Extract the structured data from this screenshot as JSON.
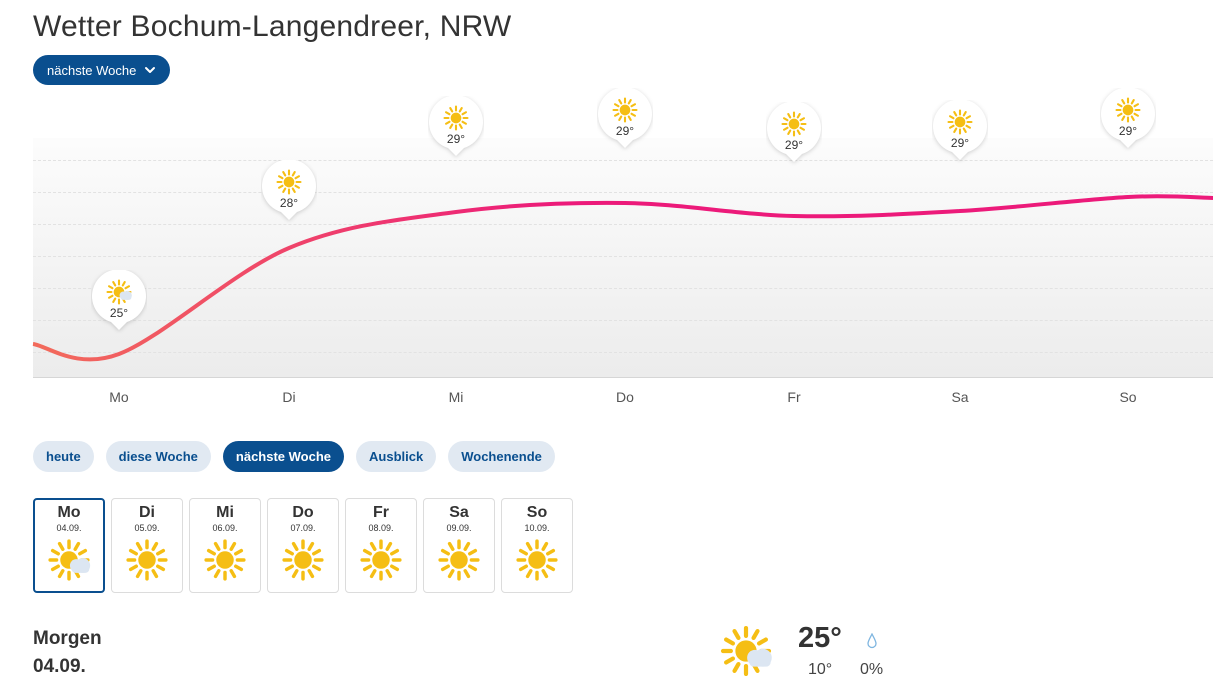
{
  "page": {
    "title": "Wetter Bochum-Langendreer, NRW",
    "period_dropdown": "nächste Woche"
  },
  "chart_data": {
    "type": "line",
    "categories": [
      "Mo",
      "Di",
      "Mi",
      "Do",
      "Fr",
      "Sa",
      "So"
    ],
    "series": [
      {
        "values": [
          25,
          28,
          29,
          29,
          29,
          29,
          29
        ]
      }
    ],
    "point_labels": [
      "25°",
      "28°",
      "29°",
      "29°",
      "29°",
      "29°",
      "29°"
    ],
    "icons": [
      "sun-cloud-icon",
      "sun-icon",
      "sun-icon",
      "sun-icon",
      "sun-icon",
      "sun-icon",
      "sun-icon"
    ],
    "line_color_start": "#f26b5b",
    "line_color_end": "#ec1a7a",
    "grid": true
  },
  "tabs": [
    {
      "label": "heute",
      "active": false
    },
    {
      "label": "diese Woche",
      "active": false
    },
    {
      "label": "nächste Woche",
      "active": true
    },
    {
      "label": "Ausblick",
      "active": false
    },
    {
      "label": "Wochenende",
      "active": false
    }
  ],
  "days": [
    {
      "name": "Mo",
      "date": "04.09.",
      "icon": "sun-cloud-icon",
      "selected": true
    },
    {
      "name": "Di",
      "date": "05.09.",
      "icon": "sun-icon",
      "selected": false
    },
    {
      "name": "Mi",
      "date": "06.09.",
      "icon": "sun-icon",
      "selected": false
    },
    {
      "name": "Do",
      "date": "07.09.",
      "icon": "sun-icon",
      "selected": false
    },
    {
      "name": "Fr",
      "date": "08.09.",
      "icon": "sun-icon",
      "selected": false
    },
    {
      "name": "Sa",
      "date": "09.09.",
      "icon": "sun-icon",
      "selected": false
    },
    {
      "name": "So",
      "date": "10.09.",
      "icon": "sun-icon",
      "selected": false
    }
  ],
  "detail": {
    "label": "Morgen",
    "date": "04.09.",
    "icon": "sun-cloud-icon",
    "max_temp": "25°",
    "min_temp": "10°",
    "precip": "0%"
  },
  "colors": {
    "brand": "#0a4f8f",
    "tab_bg": "#e1e9f2",
    "sun": "#f5be14",
    "cloud": "#dce6f2"
  }
}
